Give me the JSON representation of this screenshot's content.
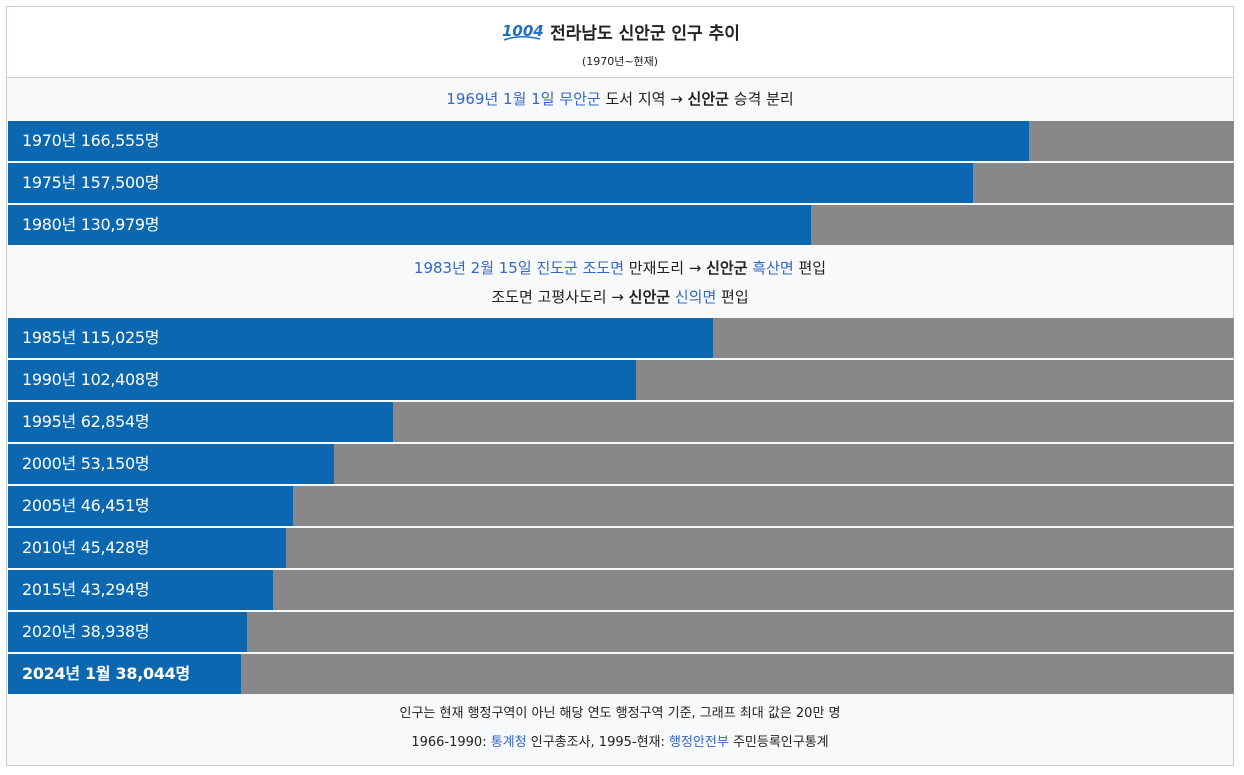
{
  "header": {
    "logo_text": "1004",
    "title": "전라남도 신안군 인구 추이",
    "subtitle": "(1970년~현재)"
  },
  "notes": {
    "n1": {
      "date": "1969년 1월 1일",
      "sp1": " ",
      "src": "무안군",
      "text": " 도서 지역 → ",
      "dest": "신안군",
      "tail": " 승격 분리"
    },
    "n2": {
      "date": "1983년 2월 15일",
      "sp1": " ",
      "src": "진도군",
      "sp2": " ",
      "src2": "조도면",
      "text": " 만재도리 → ",
      "dest": "신안군",
      "sp3": " ",
      "target": "흑산면",
      "tail": " 편입"
    },
    "n3": {
      "text": "조도면 고평사도리 → ",
      "dest": "신안군",
      "sp1": " ",
      "target": "신의면",
      "tail": " 편입"
    }
  },
  "chart_data": {
    "type": "bar",
    "orientation": "horizontal",
    "title": "전라남도 신안군 인구 추이",
    "subtitle": "(1970년~현재)",
    "xlim": [
      0,
      200000
    ],
    "categories": [
      "1970년",
      "1975년",
      "1980년",
      "1985년",
      "1990년",
      "1995년",
      "2000년",
      "2005년",
      "2010년",
      "2015년",
      "2020년",
      "2024년 1월"
    ],
    "values": [
      166555,
      157500,
      130979,
      115025,
      102408,
      62854,
      53150,
      46451,
      45428,
      43294,
      38938,
      38044
    ],
    "labels": [
      "1970년 166,555명",
      "1975년 157,500명",
      "1980년 130,979명",
      "1985년 115,025명",
      "1990년 102,408명",
      "1995년 62,854명",
      "2000년 53,150명",
      "2005년 46,451명",
      "2010년 45,428명",
      "2015년 43,294명",
      "2020년 38,938명",
      "2024년 1월 38,044명"
    ],
    "colors": {
      "bar": "#0b67b0",
      "track": "#888888"
    }
  },
  "footer": {
    "line1": "인구는 현재 행정구역이 아닌 해당 연도 행정구역 기준, 그래프 최대 값은 20만 명",
    "line2_a": "1966-1990: ",
    "line2_link1": "통계청",
    "line2_b": " 인구총조사, 1995-현재: ",
    "line2_link2": "행정안전부",
    "line2_c": " 주민등록인구통계"
  }
}
